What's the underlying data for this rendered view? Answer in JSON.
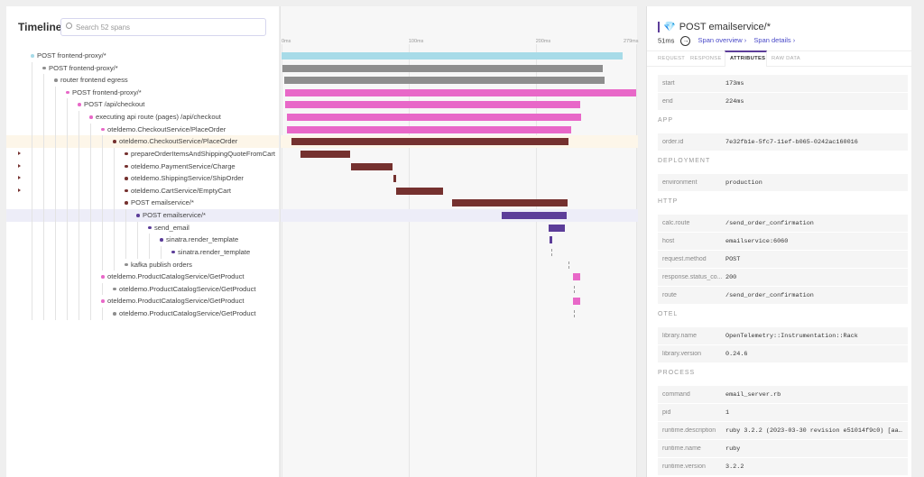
{
  "timeline": {
    "title": "Timeline",
    "search_placeholder": "Search 52 spans",
    "axis": {
      "ticks": [
        "0ms",
        "100ms",
        "200ms",
        "279ms"
      ],
      "tick_values": [
        0,
        100,
        200,
        279
      ],
      "max_ms": 279
    },
    "colors": {
      "frontend-proxy": "#a7dbe8",
      "gray": "#8e8e8e",
      "frontend": "#e868c8",
      "checkout": "#75312f",
      "email": "#5c3d99"
    },
    "spans": [
      {
        "name": "POST frontend-proxy/*",
        "level": 0,
        "color": "#a7dbe8",
        "start": 0,
        "end": 268
      },
      {
        "name": "POST frontend-proxy/*",
        "level": 1,
        "color": "#8e8e8e",
        "start": 1,
        "end": 253
      },
      {
        "name": "router frontend egress",
        "level": 2,
        "color": "#8e8e8e",
        "start": 2,
        "end": 254
      },
      {
        "name": "POST frontend-proxy/*",
        "level": 3,
        "color": "#e868c8",
        "start": 3,
        "end": 279
      },
      {
        "name": "POST /api/checkout",
        "level": 4,
        "color": "#e868c8",
        "start": 3,
        "end": 235
      },
      {
        "name": "executing api route (pages) /api/checkout",
        "level": 5,
        "color": "#e868c8",
        "start": 4,
        "end": 236
      },
      {
        "name": "oteldemo.CheckoutService/PlaceOrder",
        "level": 6,
        "color": "#e868c8",
        "start": 4,
        "end": 228
      },
      {
        "name": "oteldemo.CheckoutService/PlaceOrder",
        "level": 7,
        "color": "#75312f",
        "start": 8,
        "end": 226,
        "selected": "ancestor"
      },
      {
        "name": "prepareOrderItemsAndShippingQuoteFromCart",
        "level": 8,
        "color": "#75312f",
        "start": 15,
        "end": 54,
        "expandable": true
      },
      {
        "name": "oteldemo.PaymentService/Charge",
        "level": 8,
        "color": "#75312f",
        "start": 55,
        "end": 87,
        "expandable": true
      },
      {
        "name": "oteldemo.ShippingService/ShipOrder",
        "level": 8,
        "color": "#75312f",
        "start": 88,
        "end": 90,
        "expandable": true
      },
      {
        "name": "oteldemo.CartService/EmptyCart",
        "level": 8,
        "color": "#75312f",
        "start": 90,
        "end": 127,
        "expandable": true
      },
      {
        "name": "POST emailservice/*",
        "level": 8,
        "color": "#75312f",
        "start": 134,
        "end": 225
      },
      {
        "name": "POST emailservice/*",
        "level": 9,
        "color": "#5c3d99",
        "start": 173,
        "end": 224,
        "selected": "current"
      },
      {
        "name": "send_email",
        "level": 10,
        "color": "#5c3d99",
        "start": 210,
        "end": 223
      },
      {
        "name": "sinatra.render_template",
        "level": 11,
        "color": "#5c3d99",
        "start": 211,
        "end": 213
      },
      {
        "name": "sinatra.render_template",
        "level": 12,
        "color": "#5c3d99",
        "start": 212,
        "end": 212
      },
      {
        "name": "kafka publish orders",
        "level": 8,
        "color": "#8e8e8e",
        "start": 226,
        "end": 226
      },
      {
        "name": "oteldemo.ProductCatalogService/GetProduct",
        "level": 6,
        "color": "#e868c8",
        "start": 229,
        "end": 235
      },
      {
        "name": "oteldemo.ProductCatalogService/GetProduct",
        "level": 7,
        "color": "#8e8e8e",
        "start": 230,
        "end": 230
      },
      {
        "name": "oteldemo.ProductCatalogService/GetProduct",
        "level": 6,
        "color": "#e868c8",
        "start": 229,
        "end": 235
      },
      {
        "name": "oteldemo.ProductCatalogService/GetProduct",
        "level": 7,
        "color": "#8e8e8e",
        "start": 230,
        "end": 230
      }
    ]
  },
  "detail": {
    "title": "POST emailservice/*",
    "icon": "gem-icon",
    "duration": "51ms",
    "span_overview": "Span overview ›",
    "span_details": "Span details ›",
    "tabs": [
      {
        "label": "REQUEST"
      },
      {
        "label": "RESPONSE"
      },
      {
        "label": "ATTRIBUTES",
        "active": true
      },
      {
        "label": "RAW DATA"
      }
    ],
    "sections": [
      {
        "title": "",
        "rows": [
          {
            "k": "start",
            "v": "173ms"
          },
          {
            "k": "end",
            "v": "224ms"
          }
        ]
      },
      {
        "title": "APP",
        "rows": [
          {
            "k": "order.id",
            "v": "7e32fb1e-5fc7-11ef-b065-0242ac160016"
          }
        ]
      },
      {
        "title": "DEPLOYMENT",
        "rows": [
          {
            "k": "environment",
            "v": "production"
          }
        ]
      },
      {
        "title": "HTTP",
        "rows": [
          {
            "k": "calc.route",
            "v": "/send_order_confirmation"
          },
          {
            "k": "host",
            "v": "emailservice:6060"
          },
          {
            "k": "request.method",
            "v": "POST"
          },
          {
            "k": "response.status_co...",
            "v": "200"
          },
          {
            "k": "route",
            "v": "/send_order_confirmation"
          }
        ]
      },
      {
        "title": "OTEL",
        "rows": [
          {
            "k": "library.name",
            "v": "OpenTelemetry::Instrumentation::Rack"
          },
          {
            "k": "library.version",
            "v": "0.24.6"
          }
        ]
      },
      {
        "title": "PROCESS",
        "rows": [
          {
            "k": "command",
            "v": "email_server.rb"
          },
          {
            "k": "pid",
            "v": "1"
          },
          {
            "k": "runtime.description",
            "v": "ruby 3.2.2 (2023-03-30 revision e51014f9c0) [aarc.."
          },
          {
            "k": "runtime.name",
            "v": "ruby"
          },
          {
            "k": "runtime.version",
            "v": "3.2.2"
          }
        ]
      }
    ]
  }
}
